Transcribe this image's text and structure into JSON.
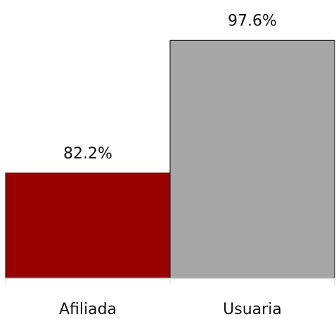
{
  "chart_data": {
    "type": "bar",
    "categories": [
      "Afiliada",
      "Usuaria"
    ],
    "values": [
      82.2,
      97.6
    ],
    "value_labels": [
      "82.2%",
      "97.6%"
    ],
    "colors": [
      "#990000",
      "#a6a6a6"
    ],
    "ylim": [
      70,
      100
    ]
  }
}
